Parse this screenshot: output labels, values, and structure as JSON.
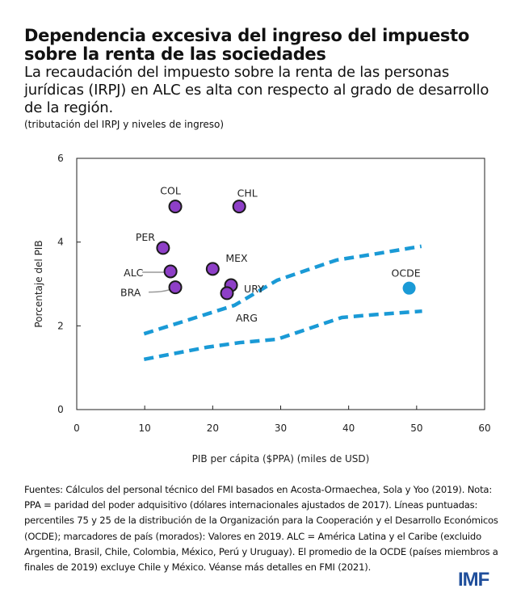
{
  "header": {
    "title": "Dependencia excesiva del ingreso del impuesto sobre la renta de las sociedades",
    "subtitle": "La recaudación del impuesto sobre la renta de las personas jurídicas (IRPJ) en ALC es alta con respecto al grado de desarrollo de la región.",
    "parenthetical": "(tributación del IRPJ y niveles de ingreso)"
  },
  "chart_data": {
    "type": "scatter",
    "xlabel": "PIB per cápita ($PPA) (miles de USD)",
    "ylabel": "Porcentaje del PIB",
    "xlim": [
      0,
      60
    ],
    "ylim": [
      0,
      6
    ],
    "xticks": [
      "0",
      "10",
      "20",
      "30",
      "40",
      "50",
      "60"
    ],
    "yticks": [
      "0",
      "2",
      "4",
      "6"
    ],
    "grid": false,
    "colors": {
      "country": "#8e3fc7",
      "oecd": "#1a9ad6",
      "lines": "#1a9ad6"
    },
    "points": [
      {
        "label": "COL",
        "x": 14.5,
        "y": 4.85,
        "group": "country"
      },
      {
        "label": "CHL",
        "x": 23.9,
        "y": 4.85,
        "group": "country"
      },
      {
        "label": "PER",
        "x": 12.7,
        "y": 3.86,
        "group": "country"
      },
      {
        "label": "ALC",
        "x": 13.8,
        "y": 3.3,
        "group": "country"
      },
      {
        "label": "BRA",
        "x": 14.5,
        "y": 2.92,
        "group": "country"
      },
      {
        "label": "MEX",
        "x": 20.0,
        "y": 3.36,
        "group": "country"
      },
      {
        "label": "URY",
        "x": 22.7,
        "y": 2.97,
        "group": "country"
      },
      {
        "label": "ARG",
        "x": 22.1,
        "y": 2.78,
        "group": "country"
      },
      {
        "label": "OCDE",
        "x": 48.9,
        "y": 2.9,
        "group": "oecd"
      }
    ],
    "lines": [
      {
        "x": [
          9.9,
          16,
          23.2,
          29.5,
          38.2,
          44,
          50.7
        ],
        "y": [
          1.81,
          2.12,
          2.49,
          3.09,
          3.57,
          3.72,
          3.9
        ]
      },
      {
        "x": [
          9.9,
          19.2,
          24,
          29.5,
          39,
          44,
          50.8
        ],
        "y": [
          1.2,
          1.49,
          1.6,
          1.68,
          2.2,
          2.27,
          2.35
        ]
      }
    ]
  },
  "notes": "Fuentes: Cálculos del personal técnico del FMI basados en Acosta-Ormaechea, Sola y Yoo (2019). Nota: PPA = paridad del poder adquisitivo (dólares internacionales ajustados de 2017). Líneas puntuadas: percentiles 75 y 25 de la distribución de la Organización para la Cooperación y el Desarrollo Económicos (OCDE); marcadores de país (morados): Valores en 2019. ALC = América Latina y el Caribe (excluido Argentina, Brasil, Chile, Colombia, México, Perú y Uruguay).  El promedio de la OCDE (países miembros a finales de 2019) excluye Chile y México. Véanse más detalles  en FMI (2021).",
  "logo": "IMF"
}
